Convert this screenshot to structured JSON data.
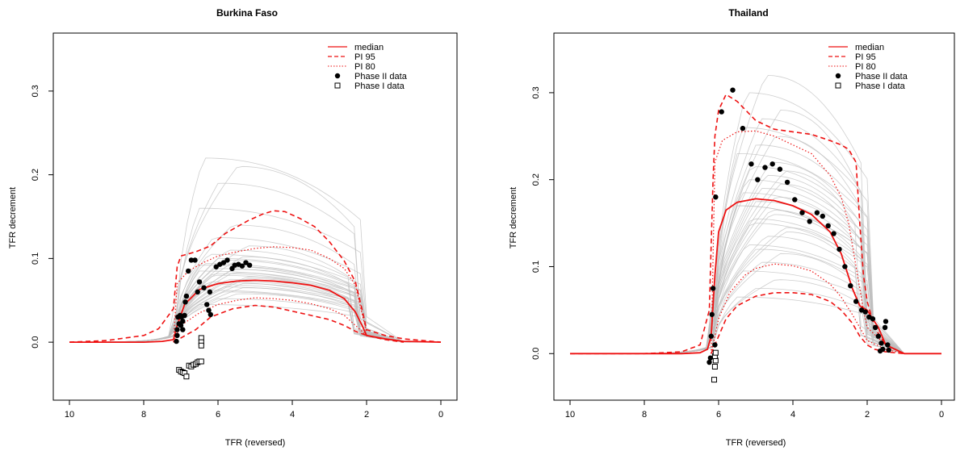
{
  "chart_data": [
    {
      "type": "line",
      "title": "Burkina Faso",
      "xlabel": "TFR (reversed)",
      "ylabel": "TFR decrement",
      "xlim": [
        10,
        0
      ],
      "ylim": [
        -0.05,
        0.35
      ],
      "x_ticks": [
        10,
        8,
        6,
        4,
        2,
        0
      ],
      "y_ticks": [
        0.0,
        0.1,
        0.2,
        0.3
      ],
      "x_tick_labels": [
        "10",
        "8",
        "6",
        "4",
        "2",
        "0"
      ],
      "y_tick_labels": [
        "0.0",
        "0.1",
        "0.2",
        "0.3"
      ],
      "legend": {
        "position": "top-right",
        "entries": [
          {
            "label": "median",
            "style": "solid-red"
          },
          {
            "label": "PI 95",
            "style": "dashed-red"
          },
          {
            "label": "PI 80",
            "style": "dotted-red"
          },
          {
            "label": "Phase II data",
            "style": "filled-circle"
          },
          {
            "label": "Phase I data",
            "style": "open-square"
          }
        ]
      },
      "trajectory_shape": {
        "start": 7.2,
        "end": 2.2,
        "tail_end": 1.0
      },
      "trajectory_levels": [
        0.045,
        0.052,
        0.058,
        0.062,
        0.066,
        0.07,
        0.072,
        0.075,
        0.078,
        0.08,
        0.083,
        0.085,
        0.088,
        0.09,
        0.094,
        0.098,
        0.102,
        0.105,
        0.11,
        0.115,
        0.125,
        0.14,
        0.16,
        0.19,
        0.21,
        0.22,
        0.06,
        0.065,
        0.069,
        0.073,
        0.076,
        0.082,
        0.087,
        0.092,
        0.1
      ],
      "series": [
        {
          "name": "median",
          "x": [
            10,
            9,
            8,
            7.5,
            7.2,
            7.1,
            6.9,
            6.5,
            6.0,
            5.5,
            5.0,
            4.5,
            4.0,
            3.5,
            3.0,
            2.6,
            2.3,
            2.1,
            2.0,
            1.5,
            1.0,
            0
          ],
          "y": [
            0.0,
            0.0,
            0.0,
            0.001,
            0.003,
            0.02,
            0.045,
            0.063,
            0.07,
            0.073,
            0.074,
            0.073,
            0.071,
            0.068,
            0.062,
            0.052,
            0.036,
            0.018,
            0.008,
            0.004,
            0.001,
            0.0
          ]
        },
        {
          "name": "PI 95",
          "x": [
            10,
            9,
            8,
            7.6,
            7.2,
            7.1,
            7.0,
            6.6,
            6.2,
            5.8,
            5.2,
            4.8,
            4.5,
            4.2,
            3.8,
            3.4,
            3.0,
            2.6,
            2.3,
            2.1,
            2.0,
            1.5,
            1.0,
            0
          ],
          "y": [
            0.0,
            0.002,
            0.008,
            0.016,
            0.04,
            0.09,
            0.103,
            0.108,
            0.115,
            0.13,
            0.145,
            0.153,
            0.157,
            0.156,
            0.148,
            0.138,
            0.12,
            0.097,
            0.072,
            0.035,
            0.015,
            0.008,
            0.004,
            0.0
          ]
        },
        {
          "name": "PI 95",
          "x": [
            7.2,
            7.0,
            6.6,
            6.2,
            5.6,
            5.0,
            4.5,
            4.0,
            3.5,
            3.0,
            2.6,
            2.3,
            2.0,
            1.5,
            1.0
          ],
          "y": [
            0.0,
            0.005,
            0.015,
            0.03,
            0.04,
            0.044,
            0.042,
            0.037,
            0.032,
            0.027,
            0.02,
            0.013,
            0.008,
            0.003,
            0.0
          ]
        },
        {
          "name": "PI 80",
          "x": [
            7.2,
            7.1,
            6.8,
            6.4,
            6.0,
            5.5,
            5.0,
            4.5,
            4.0,
            3.5,
            3.0,
            2.6,
            2.3,
            2.1,
            2.0
          ],
          "y": [
            0.0,
            0.07,
            0.085,
            0.095,
            0.103,
            0.108,
            0.112,
            0.114,
            0.113,
            0.11,
            0.1,
            0.088,
            0.068,
            0.03,
            0.012
          ]
        },
        {
          "name": "PI 80",
          "x": [
            7.2,
            7.0,
            6.5,
            6.0,
            5.5,
            5.0,
            4.5,
            4.0,
            3.5,
            3.0,
            2.6,
            2.3,
            2.0
          ],
          "y": [
            0.0,
            0.02,
            0.035,
            0.045,
            0.05,
            0.053,
            0.052,
            0.05,
            0.046,
            0.04,
            0.032,
            0.02,
            0.008
          ]
        }
      ],
      "phase2_points": [
        {
          "x": 7.12,
          "y": 0.001
        },
        {
          "x": 7.1,
          "y": 0.008
        },
        {
          "x": 7.1,
          "y": 0.015
        },
        {
          "x": 7.05,
          "y": 0.022
        },
        {
          "x": 7.08,
          "y": 0.03
        },
        {
          "x": 7.02,
          "y": 0.032
        },
        {
          "x": 7.0,
          "y": 0.02
        },
        {
          "x": 6.98,
          "y": 0.03
        },
        {
          "x": 6.95,
          "y": 0.015
        },
        {
          "x": 6.95,
          "y": 0.025
        },
        {
          "x": 6.9,
          "y": 0.032
        },
        {
          "x": 6.88,
          "y": 0.048
        },
        {
          "x": 6.85,
          "y": 0.055
        },
        {
          "x": 6.8,
          "y": 0.085
        },
        {
          "x": 6.72,
          "y": 0.098
        },
        {
          "x": 6.62,
          "y": 0.098
        },
        {
          "x": 6.55,
          "y": 0.06
        },
        {
          "x": 6.5,
          "y": 0.072
        },
        {
          "x": 6.38,
          "y": 0.065
        },
        {
          "x": 6.3,
          "y": 0.045
        },
        {
          "x": 6.25,
          "y": 0.038
        },
        {
          "x": 6.2,
          "y": 0.033
        },
        {
          "x": 6.22,
          "y": 0.06
        },
        {
          "x": 6.05,
          "y": 0.09
        },
        {
          "x": 5.95,
          "y": 0.093
        },
        {
          "x": 5.85,
          "y": 0.095
        },
        {
          "x": 5.75,
          "y": 0.098
        },
        {
          "x": 5.62,
          "y": 0.088
        },
        {
          "x": 5.55,
          "y": 0.092
        },
        {
          "x": 5.45,
          "y": 0.093
        },
        {
          "x": 5.35,
          "y": 0.091
        },
        {
          "x": 5.25,
          "y": 0.095
        },
        {
          "x": 5.15,
          "y": 0.092
        }
      ],
      "phase1_points": [
        {
          "x": 7.05,
          "y": -0.033
        },
        {
          "x": 7.0,
          "y": -0.035
        },
        {
          "x": 6.95,
          "y": -0.036
        },
        {
          "x": 6.9,
          "y": -0.037
        },
        {
          "x": 6.85,
          "y": -0.041
        },
        {
          "x": 6.78,
          "y": -0.028
        },
        {
          "x": 6.72,
          "y": -0.029
        },
        {
          "x": 6.66,
          "y": -0.027
        },
        {
          "x": 6.6,
          "y": -0.026
        },
        {
          "x": 6.55,
          "y": -0.024
        },
        {
          "x": 6.5,
          "y": -0.023
        },
        {
          "x": 6.45,
          "y": -0.023
        },
        {
          "x": 6.45,
          "y": 0.005
        },
        {
          "x": 6.45,
          "y": 0.0
        },
        {
          "x": 6.45,
          "y": -0.004
        }
      ]
    },
    {
      "type": "line",
      "title": "Thailand",
      "xlabel": "TFR (reversed)",
      "ylabel": "TFR decrement",
      "xlim": [
        10,
        0
      ],
      "ylim": [
        -0.035,
        0.35
      ],
      "x_ticks": [
        10,
        8,
        6,
        4,
        2,
        0
      ],
      "y_ticks": [
        0.0,
        0.1,
        0.2,
        0.3
      ],
      "x_tick_labels": [
        "10",
        "8",
        "6",
        "4",
        "2",
        "0"
      ],
      "y_tick_labels": [
        "0.0",
        "0.1",
        "0.2",
        "0.3"
      ],
      "legend": {
        "position": "top-right",
        "entries": [
          {
            "label": "median",
            "style": "solid-red"
          },
          {
            "label": "PI 95",
            "style": "dashed-red"
          },
          {
            "label": "PI 80",
            "style": "dotted-red"
          },
          {
            "label": "Phase II data",
            "style": "filled-circle"
          },
          {
            "label": "Phase I data",
            "style": "open-square"
          }
        ]
      },
      "trajectory_shape": {
        "start": 6.2,
        "end": 2.0,
        "tail_end": 1.0
      },
      "trajectory_levels": [
        0.065,
        0.075,
        0.085,
        0.095,
        0.105,
        0.115,
        0.125,
        0.135,
        0.145,
        0.155,
        0.165,
        0.17,
        0.175,
        0.18,
        0.185,
        0.19,
        0.195,
        0.2,
        0.205,
        0.21,
        0.215,
        0.22,
        0.23,
        0.24,
        0.25,
        0.26,
        0.27,
        0.28,
        0.3,
        0.32,
        0.14,
        0.15,
        0.16,
        0.17,
        0.12
      ],
      "series": [
        {
          "name": "median",
          "x": [
            10,
            8,
            7,
            6.5,
            6.3,
            6.2,
            6.1,
            6.0,
            5.8,
            5.5,
            5.0,
            4.5,
            4.0,
            3.5,
            3.0,
            2.7,
            2.4,
            2.2,
            2.0,
            1.7,
            1.5,
            1.0,
            0
          ],
          "y": [
            0.0,
            0.0,
            0.0,
            0.001,
            0.005,
            0.02,
            0.09,
            0.14,
            0.165,
            0.174,
            0.178,
            0.176,
            0.17,
            0.16,
            0.14,
            0.115,
            0.075,
            0.055,
            0.05,
            0.03,
            0.01,
            0.0,
            0.0
          ]
        },
        {
          "name": "PI 95",
          "x": [
            10,
            8,
            7,
            6.5,
            6.25,
            6.15,
            6.1,
            6.0,
            5.8,
            5.5,
            5.0,
            4.5,
            4.0,
            3.5,
            3.0,
            2.7,
            2.5,
            2.3,
            2.2,
            2.1,
            2.0,
            1.8,
            1.5,
            1.0
          ],
          "y": [
            0.0,
            0.0,
            0.002,
            0.01,
            0.05,
            0.2,
            0.25,
            0.28,
            0.298,
            0.29,
            0.268,
            0.258,
            0.255,
            0.252,
            0.245,
            0.24,
            0.235,
            0.22,
            0.15,
            0.09,
            0.06,
            0.03,
            0.01,
            0.0
          ]
        },
        {
          "name": "PI 95",
          "x": [
            6.2,
            6.0,
            5.8,
            5.5,
            5.0,
            4.5,
            4.0,
            3.5,
            3.0,
            2.7,
            2.4,
            2.2,
            2.0,
            1.8,
            1.5,
            1.0
          ],
          "y": [
            0.0,
            0.02,
            0.04,
            0.055,
            0.066,
            0.07,
            0.07,
            0.068,
            0.06,
            0.05,
            0.035,
            0.02,
            0.01,
            0.005,
            0.002,
            0.0
          ]
        },
        {
          "name": "PI 80",
          "x": [
            6.2,
            6.1,
            5.9,
            5.5,
            5.0,
            4.5,
            4.0,
            3.5,
            3.0,
            2.7,
            2.5,
            2.3,
            2.1,
            2.0,
            1.5,
            1.0
          ],
          "y": [
            0.0,
            0.22,
            0.245,
            0.255,
            0.256,
            0.25,
            0.24,
            0.23,
            0.205,
            0.18,
            0.15,
            0.1,
            0.05,
            0.03,
            0.01,
            0.0
          ]
        },
        {
          "name": "PI 80",
          "x": [
            6.2,
            6.0,
            5.7,
            5.3,
            5.0,
            4.5,
            4.0,
            3.5,
            3.0,
            2.7,
            2.4,
            2.2,
            2.0,
            1.5,
            1.0
          ],
          "y": [
            0.0,
            0.04,
            0.07,
            0.09,
            0.098,
            0.103,
            0.101,
            0.095,
            0.08,
            0.065,
            0.045,
            0.03,
            0.015,
            0.005,
            0.0
          ]
        }
      ],
      "phase2_points": [
        {
          "x": 6.25,
          "y": -0.01
        },
        {
          "x": 6.22,
          "y": -0.005
        },
        {
          "x": 6.2,
          "y": 0.02
        },
        {
          "x": 6.18,
          "y": 0.045
        },
        {
          "x": 6.15,
          "y": 0.075
        },
        {
          "x": 6.1,
          "y": 0.01
        },
        {
          "x": 6.08,
          "y": 0.18
        },
        {
          "x": 5.92,
          "y": 0.278
        },
        {
          "x": 5.62,
          "y": 0.303
        },
        {
          "x": 5.35,
          "y": 0.259
        },
        {
          "x": 5.12,
          "y": 0.218
        },
        {
          "x": 4.95,
          "y": 0.2
        },
        {
          "x": 4.75,
          "y": 0.214
        },
        {
          "x": 4.55,
          "y": 0.218
        },
        {
          "x": 4.35,
          "y": 0.212
        },
        {
          "x": 4.15,
          "y": 0.197
        },
        {
          "x": 3.95,
          "y": 0.177
        },
        {
          "x": 3.75,
          "y": 0.162
        },
        {
          "x": 3.55,
          "y": 0.152
        },
        {
          "x": 3.35,
          "y": 0.162
        },
        {
          "x": 3.2,
          "y": 0.158
        },
        {
          "x": 3.05,
          "y": 0.147
        },
        {
          "x": 2.9,
          "y": 0.138
        },
        {
          "x": 2.75,
          "y": 0.12
        },
        {
          "x": 2.6,
          "y": 0.1
        },
        {
          "x": 2.45,
          "y": 0.078
        },
        {
          "x": 2.3,
          "y": 0.06
        },
        {
          "x": 2.15,
          "y": 0.05
        },
        {
          "x": 2.05,
          "y": 0.048
        },
        {
          "x": 1.95,
          "y": 0.042
        },
        {
          "x": 1.85,
          "y": 0.04
        },
        {
          "x": 1.78,
          "y": 0.03
        },
        {
          "x": 1.7,
          "y": 0.02
        },
        {
          "x": 1.62,
          "y": 0.012
        },
        {
          "x": 1.58,
          "y": 0.005
        },
        {
          "x": 1.52,
          "y": 0.03
        },
        {
          "x": 1.5,
          "y": 0.037
        },
        {
          "x": 1.45,
          "y": 0.01
        },
        {
          "x": 1.42,
          "y": 0.004
        },
        {
          "x": 1.65,
          "y": 0.003
        }
      ],
      "phase1_points": [
        {
          "x": 6.12,
          "y": -0.03
        },
        {
          "x": 6.1,
          "y": -0.015
        },
        {
          "x": 6.08,
          "y": -0.008
        },
        {
          "x": 6.1,
          "y": -0.003
        },
        {
          "x": 6.08,
          "y": 0.001
        }
      ]
    }
  ]
}
